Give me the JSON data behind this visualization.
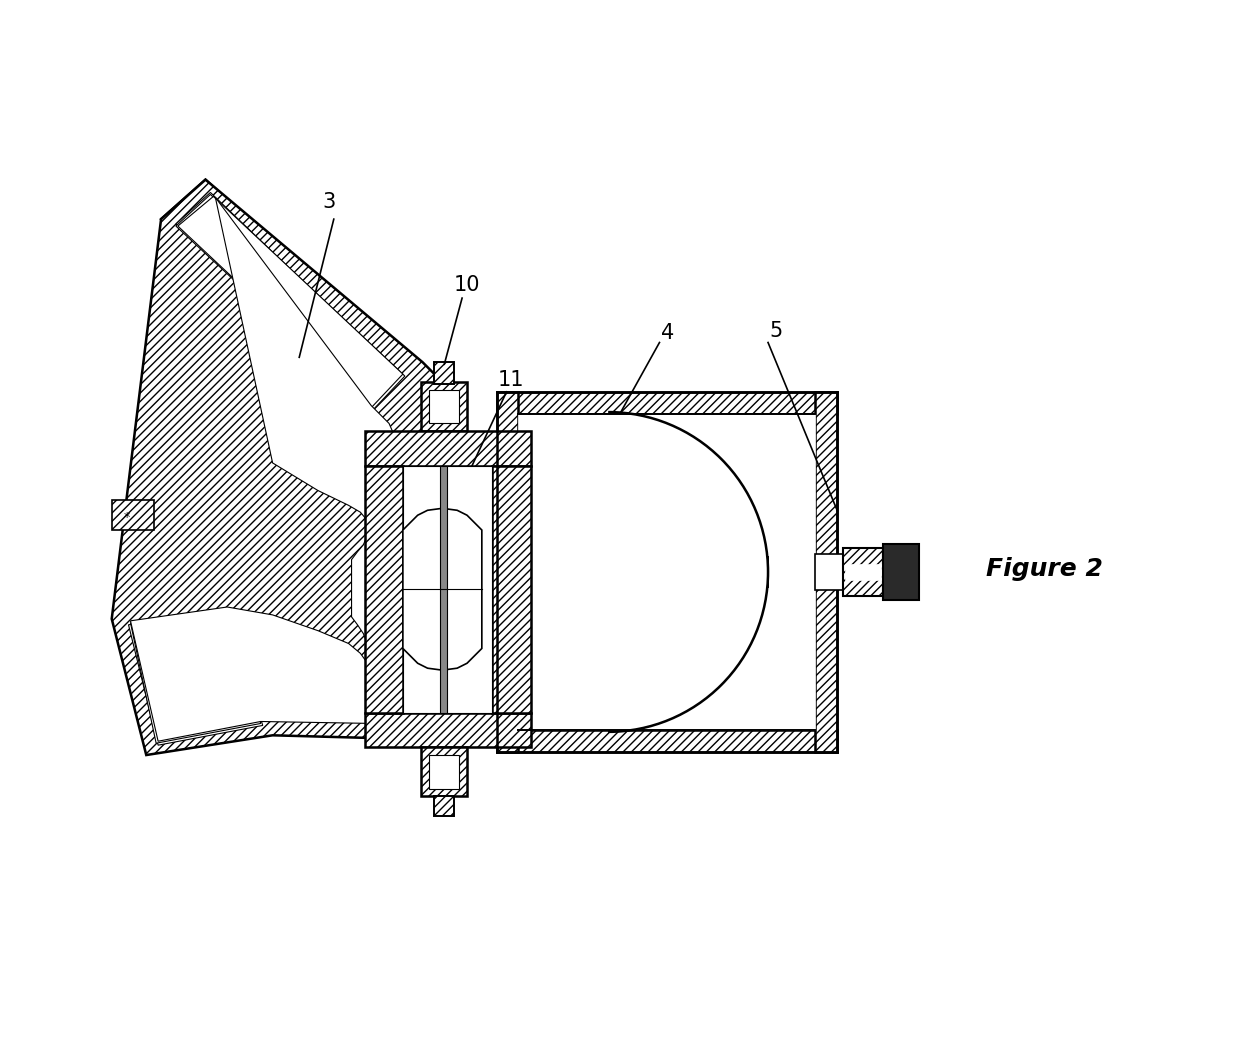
{
  "title": "Figure 2",
  "background_color": "#ffffff",
  "line_color": "#000000",
  "label_fontsize": 15,
  "title_fontsize": 18,
  "lw": 1.4
}
